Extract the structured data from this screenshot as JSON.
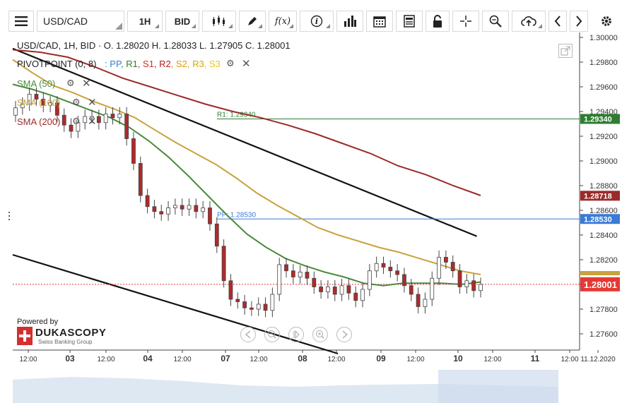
{
  "toolbar": {
    "menu_icon": "hamburger-menu-icon",
    "symbol": "USD/CAD",
    "timeframe": "1H",
    "side": "BID",
    "tools": [
      "candle-type-icon",
      "pencil-icon",
      "fx-icon",
      "info-icon",
      "bar-chart-icon",
      "calendar-icon",
      "news-icon",
      "lock-icon",
      "crosshair-icon",
      "zoom-icon",
      "cloud-upload-icon",
      "chevron-left-icon",
      "chevron-right-icon",
      "gear-icon"
    ],
    "fx_label": "f(x)",
    "info_label": "i"
  },
  "legend": {
    "ohlc": "USD/CAD, 1H, BID · O. 1.28020 H. 1.28033 L. 1.27905 C. 1.28001",
    "pivot_label": "PIVOTPOINT (0, 8)",
    "pivot_items": [
      {
        "name": "PP",
        "color": "#3a7bd5"
      },
      {
        "name": "R1",
        "color": "#2e7d32"
      },
      {
        "name": "S1",
        "color": "#d32f2f"
      },
      {
        "name": "R2",
        "color": "#b71c1c"
      },
      {
        "name": "S2",
        "color": "#e09b0d"
      },
      {
        "name": "R3",
        "color": "#d6a900"
      },
      {
        "name": "S3",
        "color": "#f0c419"
      }
    ],
    "sma50": "SMA (50)",
    "sma100": "SMA (100)",
    "sma200": "SMA (200)"
  },
  "levels": {
    "r1_label": "R1: 1.29340",
    "pp_label": "PP: 1.28530"
  },
  "price_tags": {
    "r1": "1.29340",
    "sma200": "1.28718",
    "pp": "1.28530",
    "last": "1.28001"
  },
  "branding": {
    "powered_by": "Powered by",
    "name": "DUKASCOPY",
    "sub": "Swiss Banking Group"
  },
  "colors": {
    "sma50": "#4a8a3c",
    "sma100": "#c9a23c",
    "sma200": "#9b2a2a",
    "r1": "#2e7d32",
    "pp": "#3a7bd5",
    "last": "#e53935",
    "candle": "#b02a2a"
  },
  "chart_data": {
    "type": "candlestick",
    "symbol": "USD/CAD",
    "timeframe": "1H",
    "ylim": [
      1.2744,
      1.3
    ],
    "y_ticks": [
      "1.30000",
      "1.29800",
      "1.29600",
      "1.29400",
      "1.29200",
      "1.29000",
      "1.28800",
      "1.28600",
      "1.28400",
      "1.28200",
      "1.28000",
      "1.27800",
      "1.27600"
    ],
    "x_ticks": [
      "12:00",
      "03",
      "12:00",
      "04",
      "12:00",
      "07",
      "12:00",
      "08",
      "12:00",
      "09",
      "12:00",
      "10",
      "12:00",
      "11",
      "12:00",
      "11.12.2020"
    ],
    "ohlc": {
      "open": 1.2802,
      "high": 1.28033,
      "low": 1.27905,
      "close": 1.28001
    },
    "pivot": {
      "PP": 1.2853,
      "R1": 1.2934
    },
    "sma200": 1.28718,
    "trend_lines": [
      {
        "from": [
          0,
          1.2991
        ],
        "to": [
          64,
          1.2839
        ]
      },
      {
        "from": [
          0,
          1.2824
        ],
        "to": [
          44,
          1.2744
        ]
      }
    ],
    "closes": [
      1.2943,
      1.2946,
      1.2954,
      1.295,
      1.2945,
      1.2947,
      1.2937,
      1.2929,
      1.2924,
      1.2931,
      1.2936,
      1.2936,
      1.2931,
      1.2938,
      1.2935,
      1.2938,
      1.2918,
      1.2898,
      1.2872,
      1.2863,
      1.2859,
      1.2857,
      1.2862,
      1.2864,
      1.2861,
      1.2864,
      1.2859,
      1.2862,
      1.2849,
      1.2831,
      1.2803,
      1.2788,
      1.2786,
      1.2781,
      1.278,
      1.2784,
      1.2779,
      1.2792,
      1.2816,
      1.2811,
      1.2806,
      1.281,
      1.2805,
      1.2798,
      1.2794,
      1.2798,
      1.2792,
      1.2799,
      1.2793,
      1.2787,
      1.2796,
      1.2811,
      1.2817,
      1.2814,
      1.2811,
      1.2808,
      1.2799,
      1.2792,
      1.2782,
      1.2788,
      1.2805,
      1.2822,
      1.2818,
      1.2811,
      1.2798,
      1.2803,
      1.2795,
      1.28
    ],
    "sma50": [
      1.2962,
      1.2958,
      1.2953,
      1.2947,
      1.2941,
      1.2935,
      1.2927,
      1.2916,
      1.2903,
      1.2888,
      1.2872,
      1.2856,
      1.2841,
      1.283,
      1.2821,
      1.2815,
      1.281,
      1.2806,
      1.2801,
      1.2799,
      1.2801,
      1.2801,
      1.2801,
      1.28,
      1.2802
    ],
    "sma100": [
      1.2982,
      1.2971,
      1.2961,
      1.2955,
      1.2948,
      1.2942,
      1.2935,
      1.2925,
      1.2915,
      1.2906,
      1.2897,
      1.2886,
      1.2874,
      1.2864,
      1.2855,
      1.2846,
      1.284,
      1.2835,
      1.283,
      1.2826,
      1.2821,
      1.2816,
      1.2811,
      1.2808
    ],
    "sma200_series": [
      1.299,
      1.2988,
      1.2984,
      1.2976,
      1.2967,
      1.296,
      1.2953,
      1.2946,
      1.294,
      1.2935,
      1.2929,
      1.2922,
      1.2914,
      1.2906,
      1.2896,
      1.2889,
      1.288,
      1.2872
    ]
  }
}
